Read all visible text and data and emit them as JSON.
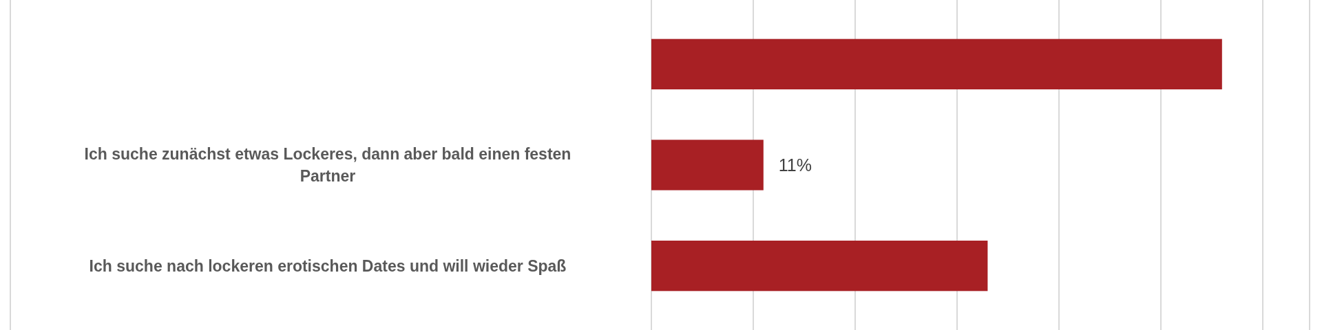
{
  "chart_data": {
    "type": "bar",
    "orientation": "horizontal",
    "categories": [
      null,
      "Ich suche zunächst etwas Lockeres, dann aber bald einen festen Partner",
      "Ich suche nach lockeren erotischen Dates und will wieder Spaß"
    ],
    "values": [
      56,
      11,
      33
    ],
    "value_labels": [
      null,
      "11%",
      null
    ],
    "color": "#a82024",
    "xlim": [
      0,
      60
    ],
    "xticks": [
      {
        "value": 0,
        "label": null
      },
      {
        "value": 10,
        "label": null
      },
      {
        "value": 20,
        "label": null
      },
      {
        "value": 30,
        "label": null
      },
      {
        "value": 40,
        "label": null
      },
      {
        "value": 50,
        "label": null
      },
      {
        "value": 60,
        "label": null
      }
    ],
    "grid": "x"
  }
}
